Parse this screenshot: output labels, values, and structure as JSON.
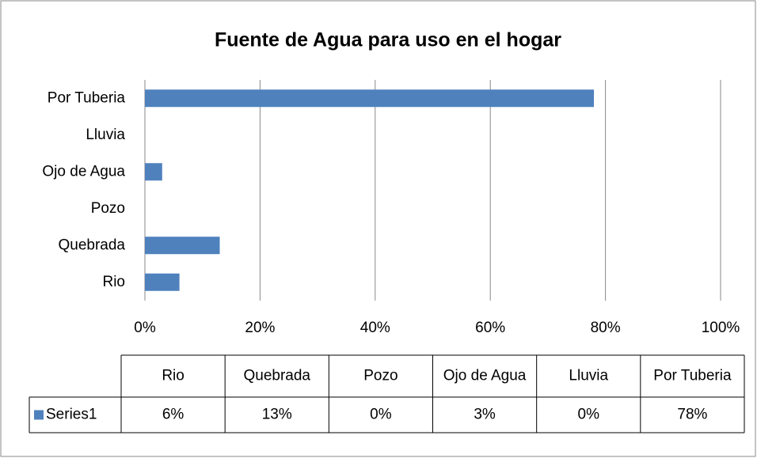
{
  "chart_data": {
    "type": "bar",
    "orientation": "horizontal",
    "title": "Fuente de Agua para uso en el hogar",
    "categories": [
      "Rio",
      "Quebrada",
      "Pozo",
      "Ojo de Agua",
      "Lluvia",
      "Por Tuberia"
    ],
    "series": [
      {
        "name": "Series1",
        "color": "#4f81bd",
        "values": [
          6,
          13,
          0,
          3,
          0,
          78
        ],
        "value_labels": [
          "6%",
          "13%",
          "0%",
          "3%",
          "0%",
          "78%"
        ]
      }
    ],
    "xlim": [
      0,
      100
    ],
    "xticks": [
      {
        "value": 0,
        "label": "0%"
      },
      {
        "value": 20,
        "label": "20%"
      },
      {
        "value": 40,
        "label": "40%"
      },
      {
        "value": 60,
        "label": "60%"
      },
      {
        "value": 80,
        "label": "80%"
      },
      {
        "value": 100,
        "label": "100%"
      }
    ],
    "grid": true
  }
}
